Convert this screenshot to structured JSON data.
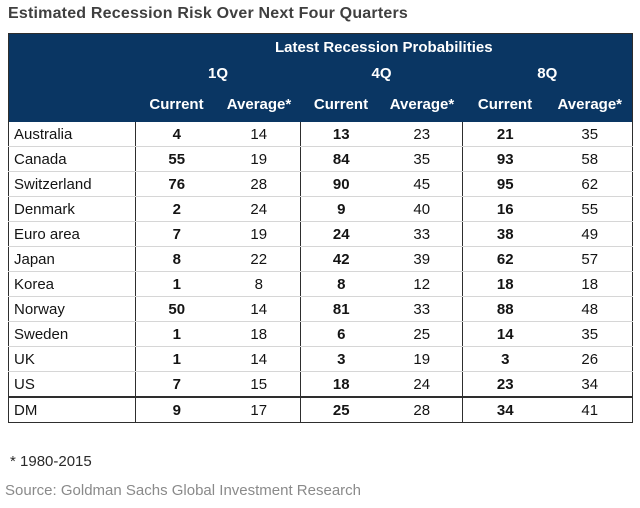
{
  "page": {
    "title": "Estimated Recession Risk Over Next Four Quarters",
    "footnote": "* 1980-2015",
    "source": "Source: Goldman Sachs Global Investment Research"
  },
  "header": {
    "banner": "Latest Recession Probabilities",
    "groups": [
      "1Q",
      "4Q",
      "8Q"
    ],
    "sub": [
      "Current",
      "Average*",
      "Current",
      "Average*",
      "Current",
      "Average*"
    ]
  },
  "colors": {
    "header_bg": "#0a3663",
    "header_text": "#ffffff",
    "title_text": "#3f3f3f",
    "body_text": "#141414",
    "footnote_text": "#2a2a2a",
    "source_text": "#8a8a8a",
    "border_dark": "#2e2e2e",
    "row_line": "#d6d6d6"
  },
  "chart_data": {
    "type": "table",
    "title": "Estimated Recession Risk Over Next Four Quarters",
    "banner": "Latest Recession Probabilities",
    "column_groups": [
      "1Q",
      "4Q",
      "8Q"
    ],
    "columns": [
      "1Q Current",
      "1Q Average*",
      "4Q Current",
      "4Q Average*",
      "8Q Current",
      "8Q Average*"
    ],
    "categories": [
      "Australia",
      "Canada",
      "Switzerland",
      "Denmark",
      "Euro area",
      "Japan",
      "Korea",
      "Norway",
      "Sweden",
      "UK",
      "US",
      "DM"
    ],
    "rows": [
      [
        4,
        14,
        13,
        23,
        21,
        35
      ],
      [
        55,
        19,
        84,
        35,
        93,
        58
      ],
      [
        76,
        28,
        90,
        45,
        95,
        62
      ],
      [
        2,
        24,
        9,
        40,
        16,
        55
      ],
      [
        7,
        19,
        24,
        33,
        38,
        49
      ],
      [
        8,
        22,
        42,
        39,
        62,
        57
      ],
      [
        1,
        8,
        8,
        12,
        18,
        18
      ],
      [
        50,
        14,
        81,
        33,
        88,
        48
      ],
      [
        1,
        18,
        6,
        25,
        14,
        35
      ],
      [
        1,
        14,
        3,
        19,
        3,
        26
      ],
      [
        7,
        15,
        18,
        24,
        23,
        34
      ],
      [
        9,
        17,
        25,
        28,
        34,
        41
      ]
    ],
    "summary_category": "DM",
    "footnote": "* 1980-2015",
    "source": "Source: Goldman Sachs Global Investment Research"
  }
}
